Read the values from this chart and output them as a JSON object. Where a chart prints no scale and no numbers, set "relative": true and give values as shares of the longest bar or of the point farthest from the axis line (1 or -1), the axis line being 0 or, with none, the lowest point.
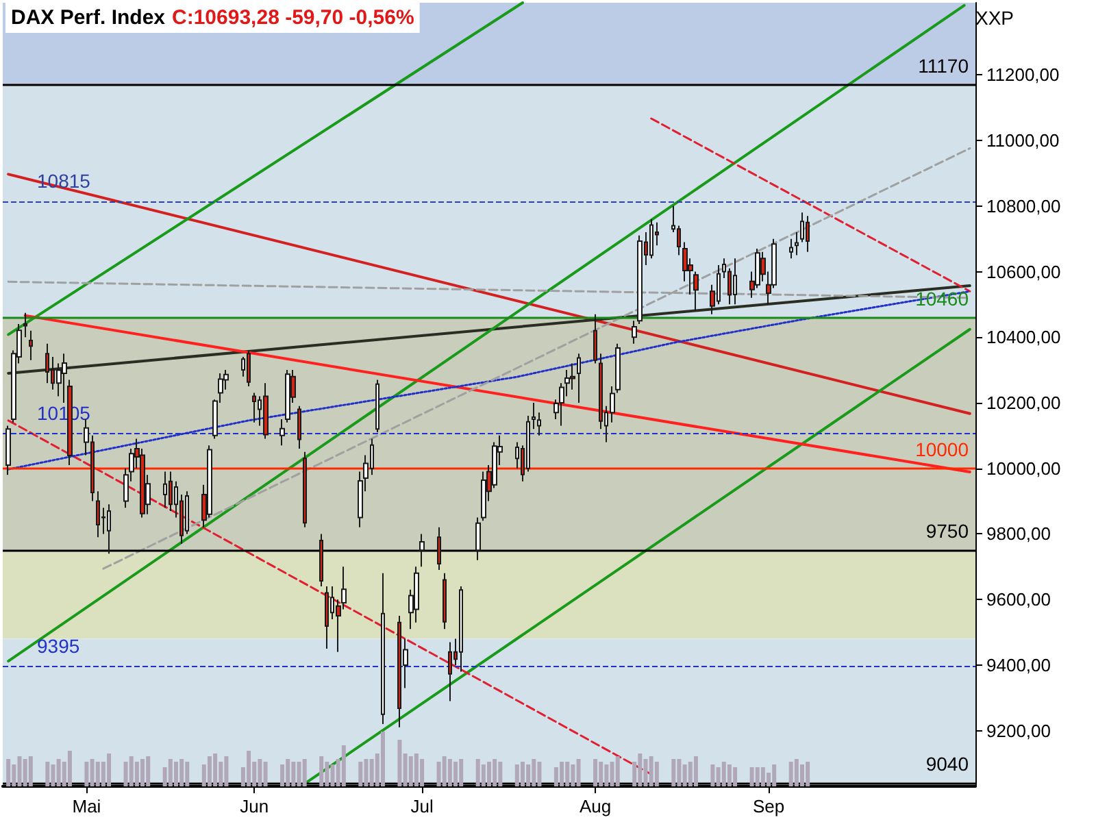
{
  "chart_data": [
    {
      "type": "candlestick",
      "title": "DAX Perf. Index",
      "subtitle": "C:10693,28 -59,70 -0,56%",
      "annotations": [
        "XXP"
      ],
      "x": [
        "--04-18",
        "--04-19",
        "--04-20",
        "--04-21",
        "--04-22",
        "--04-25",
        "--04-26",
        "--04-27",
        "--04-28",
        "--04-29",
        "--05-02",
        "--05-03",
        "--05-04",
        "--05-05",
        "--05-06",
        "--05-09",
        "--05-10",
        "--05-11",
        "--05-12",
        "--05-13",
        "--05-16",
        "--05-17",
        "--05-18",
        "--05-19",
        "--05-20",
        "--05-23",
        "--05-24",
        "--05-25",
        "--05-26",
        "--05-27",
        "--05-30",
        "--05-31",
        "--06-01",
        "--06-02",
        "--06-03",
        "--06-06",
        "--06-07",
        "--06-08",
        "--06-09",
        "--06-10",
        "--06-13",
        "--06-14",
        "--06-15",
        "--06-16",
        "--06-17",
        "--06-20",
        "--06-21",
        "--06-22",
        "--06-23",
        "--06-24",
        "--06-27",
        "--06-28",
        "--06-29",
        "--06-30",
        "--07-01",
        "--07-04",
        "--07-05",
        "--07-06",
        "--07-07",
        "--07-08",
        "--07-11",
        "--07-12",
        "--07-13",
        "--07-14",
        "--07-15",
        "--07-18",
        "--07-19",
        "--07-20",
        "--07-21",
        "--07-22",
        "--07-25",
        "--07-26",
        "--07-27",
        "--07-28",
        "--07-29",
        "--08-01",
        "--08-02",
        "--08-03",
        "--08-04",
        "--08-05",
        "--08-08",
        "--08-09",
        "--08-10",
        "--08-11",
        "--08-12",
        "--08-15",
        "--08-16",
        "--08-17",
        "--08-18",
        "--08-19",
        "--08-22",
        "--08-23",
        "--08-24",
        "--08-25",
        "--08-26",
        "--08-29",
        "--08-30",
        "--08-31",
        "--09-01",
        "--09-02",
        "--09-05",
        "--09-06",
        "--09-07",
        "--09-08"
      ],
      "ohlc": [
        [
          10010,
          10130,
          9980,
          10120
        ],
        [
          10150,
          10360,
          10140,
          10350
        ],
        [
          10340,
          10440,
          10320,
          10421
        ],
        [
          10440,
          10474,
          10400,
          10435
        ],
        [
          10390,
          10420,
          10330,
          10373
        ],
        [
          10350,
          10380,
          10260,
          10294
        ],
        [
          10300,
          10340,
          10240,
          10260
        ],
        [
          10260,
          10320,
          10220,
          10299
        ],
        [
          10290,
          10350,
          10200,
          10321
        ],
        [
          10250,
          10270,
          10010,
          10039
        ],
        [
          10080,
          10150,
          10040,
          10123
        ],
        [
          10080,
          10100,
          9900,
          9926
        ],
        [
          9900,
          9930,
          9790,
          9828
        ],
        [
          9850,
          9880,
          9800,
          9851
        ],
        [
          9810,
          9890,
          9740,
          9870
        ],
        [
          9900,
          10000,
          9880,
          9980
        ],
        [
          9990,
          10060,
          9960,
          10045
        ],
        [
          10060,
          10090,
          10000,
          10035
        ],
        [
          10040,
          10060,
          9850,
          9862
        ],
        [
          9890,
          9980,
          9860,
          9953
        ],
        [
          9920,
          9990,
          9880,
          9952
        ],
        [
          9960,
          9990,
          9870,
          9890
        ],
        [
          9890,
          9960,
          9850,
          9943
        ],
        [
          9900,
          9920,
          9770,
          9795
        ],
        [
          9810,
          9930,
          9800,
          9916
        ],
        [
          9920,
          9950,
          9820,
          9842
        ],
        [
          9860,
          10070,
          9850,
          10057
        ],
        [
          10100,
          10210,
          10090,
          10205
        ],
        [
          10230,
          10290,
          10200,
          10272
        ],
        [
          10270,
          10300,
          10240,
          10286
        ],
        [
          10300,
          10340,
          10280,
          10333
        ],
        [
          10350,
          10360,
          10250,
          10263
        ],
        [
          10220,
          10230,
          10140,
          10204
        ],
        [
          10180,
          10220,
          10130,
          10208
        ],
        [
          10220,
          10260,
          10090,
          10103
        ],
        [
          10100,
          10150,
          10070,
          10121
        ],
        [
          10150,
          10300,
          10140,
          10287
        ],
        [
          10280,
          10300,
          10200,
          10217
        ],
        [
          10180,
          10190,
          10060,
          10088
        ],
        [
          10030,
          10050,
          9820,
          9834
        ],
        [
          9780,
          9800,
          9640,
          9657
        ],
        [
          9620,
          9640,
          9450,
          9519
        ],
        [
          9560,
          9640,
          9540,
          9606
        ],
        [
          9580,
          9600,
          9440,
          9550
        ],
        [
          9590,
          9700,
          9570,
          9631
        ],
        [
          9850,
          9990,
          9820,
          9962
        ],
        [
          9970,
          10040,
          9930,
          10015
        ],
        [
          10000,
          10090,
          9980,
          10071
        ],
        [
          10120,
          10270,
          10110,
          10257
        ],
        [
          9250,
          9680,
          9220,
          9557
        ],
        [
          9530,
          9550,
          9210,
          9268
        ],
        [
          9400,
          9480,
          9330,
          9447
        ],
        [
          9560,
          9630,
          9510,
          9612
        ],
        [
          9570,
          9700,
          9530,
          9680
        ],
        [
          9750,
          9800,
          9700,
          9776
        ],
        [
          9790,
          9820,
          9690,
          9709
        ],
        [
          9660,
          9680,
          9510,
          9532
        ],
        [
          9440,
          9470,
          9290,
          9373
        ],
        [
          9440,
          9480,
          9400,
          9418
        ],
        [
          9440,
          9640,
          9380,
          9629
        ],
        [
          9750,
          9850,
          9720,
          9833
        ],
        [
          9850,
          9990,
          9840,
          9964
        ],
        [
          9990,
          10010,
          9900,
          9930
        ],
        [
          9950,
          10080,
          9940,
          10068
        ],
        [
          10050,
          10100,
          10010,
          10066
        ],
        [
          10030,
          10080,
          10000,
          10064
        ],
        [
          10060,
          10070,
          9960,
          9981
        ],
        [
          10000,
          10160,
          9990,
          10142
        ],
        [
          10150,
          10200,
          10120,
          10156
        ],
        [
          10130,
          10170,
          10100,
          10147
        ],
        [
          10170,
          10210,
          10150,
          10198
        ],
        [
          10200,
          10260,
          10130,
          10247
        ],
        [
          10260,
          10300,
          10220,
          10275
        ],
        [
          10280,
          10320,
          10240,
          10274
        ],
        [
          10290,
          10350,
          10200,
          10337
        ],
        [
          10420,
          10470,
          10320,
          10330
        ],
        [
          10320,
          10350,
          10120,
          10144
        ],
        [
          10130,
          10190,
          10080,
          10170
        ],
        [
          10170,
          10250,
          10140,
          10228
        ],
        [
          10240,
          10380,
          10230,
          10367
        ],
        [
          10400,
          10450,
          10380,
          10432
        ],
        [
          10450,
          10710,
          10440,
          10693
        ],
        [
          10690,
          10720,
          10620,
          10651
        ],
        [
          10650,
          10760,
          10640,
          10742
        ],
        [
          10720,
          10750,
          10680,
          10713
        ],
        [
          10730,
          10800,
          10720,
          10740
        ],
        [
          10730,
          10740,
          10650,
          10676
        ],
        [
          10670,
          10690,
          10570,
          10603
        ],
        [
          10620,
          10640,
          10530,
          10603
        ],
        [
          10590,
          10600,
          10480,
          10544
        ],
        [
          10540,
          10560,
          10470,
          10495
        ],
        [
          10510,
          10620,
          10500,
          10593
        ],
        [
          10600,
          10640,
          10580,
          10622
        ],
        [
          10600,
          10610,
          10500,
          10529
        ],
        [
          10530,
          10640,
          10500,
          10588
        ],
        [
          10570,
          10600,
          10520,
          10545
        ],
        [
          10560,
          10670,
          10550,
          10657
        ],
        [
          10640,
          10660,
          10570,
          10592
        ],
        [
          10560,
          10600,
          10500,
          10534
        ],
        [
          10560,
          10700,
          10550,
          10684
        ],
        [
          10660,
          10700,
          10640,
          10673
        ],
        [
          10680,
          10720,
          10650,
          10688
        ],
        [
          10700,
          10780,
          10690,
          10753
        ],
        [
          10750,
          10770,
          10660,
          10693
        ]
      ],
      "colors": [
        "#ffffff",
        "#ffffff",
        "#ffffff",
        "#d02818",
        "#d02818",
        "#d02818",
        "#d02818",
        "#ffffff",
        "#ffffff",
        "#d02818",
        "#ffffff",
        "#d02818",
        "#d02818",
        "#ffffff",
        "#ffffff",
        "#ffffff",
        "#ffffff",
        "#d02818",
        "#d02818",
        "#ffffff",
        "#ffffff",
        "#d02818",
        "#ffffff",
        "#d02818",
        "#ffffff",
        "#d02818",
        "#ffffff",
        "#ffffff",
        "#ffffff",
        "#ffffff",
        "#ffffff",
        "#d02818",
        "#d02818",
        "#ffffff",
        "#d02818",
        "#ffffff",
        "#ffffff",
        "#d02818",
        "#d02818",
        "#d02818",
        "#d02818",
        "#d02818",
        "#ffffff",
        "#d02818",
        "#ffffff",
        "#ffffff",
        "#ffffff",
        "#ffffff",
        "#ffffff",
        "#ffffff",
        "#d02818",
        "#ffffff",
        "#ffffff",
        "#ffffff",
        "#ffffff",
        "#d02818",
        "#d02818",
        "#d02818",
        "#d02818",
        "#ffffff",
        "#ffffff",
        "#ffffff",
        "#d02818",
        "#ffffff",
        "#ffffff",
        "#ffffff",
        "#d02818",
        "#ffffff",
        "#ffffff",
        "#ffffff",
        "#ffffff",
        "#ffffff",
        "#ffffff",
        "#d02818",
        "#ffffff",
        "#d02818",
        "#d02818",
        "#ffffff",
        "#ffffff",
        "#ffffff",
        "#ffffff",
        "#ffffff",
        "#d02818",
        "#ffffff",
        "#d02818",
        "#ffffff",
        "#d02818",
        "#d02818",
        "#d02818",
        "#d02818",
        "#d02818",
        "#ffffff",
        "#ffffff",
        "#d02818",
        "#ffffff",
        "#d02818",
        "#ffffff",
        "#d02818",
        "#d02818",
        "#ffffff",
        "#ffffff",
        "#ffffff",
        "#ffffff",
        "#d02818"
      ],
      "series": [
        {
          "type": "line",
          "x": [
            "--04-18",
            "--10-07"
          ],
          "values": [
            10897,
            10167
          ],
          "color": "#d42020",
          "line_style": "solid"
        },
        {
          "type": "line",
          "x": [
            "--04-18",
            "--10-07"
          ],
          "values": [
            10290,
            10557
          ],
          "color": "#2a2e22",
          "line_style": "solid"
        },
        {
          "type": "line",
          "x": [
            "--04-18",
            "--07-19"
          ],
          "values": [
            10408,
            11420
          ],
          "color": "#1a9a1a",
          "line_style": "solid"
        },
        {
          "type": "line",
          "x": [
            "--04-18",
            "--10-06"
          ],
          "values": [
            9412,
            11412
          ],
          "color": "#1a9a1a",
          "line_style": "solid"
        },
        {
          "type": "line",
          "x": [
            "--06-10",
            "--10-07"
          ],
          "values": [
            9038,
            10424
          ],
          "color": "#1a9a1a",
          "line_style": "solid"
        },
        {
          "type": "line",
          "x": [
            "--04-21",
            "--10-07"
          ],
          "values": [
            10466,
            9989
          ],
          "color": "#ff2020",
          "line_style": "solid"
        },
        {
          "type": "line",
          "x": [
            "--04-18",
            "--08-11"
          ],
          "values": [
            10146,
            9067
          ],
          "color": "#e02030",
          "line_style": "dashed"
        },
        {
          "type": "line",
          "x": [
            "--08-11",
            "--10-07"
          ],
          "values": [
            11067,
            10540
          ],
          "color": "#e02030",
          "line_style": "dashed"
        },
        {
          "type": "line",
          "x": [
            "--04-18",
            "--05-31",
            "--07-18",
            "--08-15",
            "--09-08",
            "--10-07"
          ],
          "values": [
            9997,
            10146,
            10279,
            10383,
            10457,
            10540
          ],
          "color": "#2030c8",
          "line_style": "dotted"
        },
        {
          "type": "line",
          "x": [
            "--04-18",
            "--10-07"
          ],
          "values": [
            10569,
            10520
          ],
          "color": "#a0a0a0",
          "line_style": "dashed"
        },
        {
          "type": "line",
          "x": [
            "--05-05",
            "--10-07"
          ],
          "values": [
            9694,
            10976
          ],
          "color": "#a0a0a0",
          "line_style": "dashed"
        }
      ],
      "xlim": [
        "--04-17",
        "--10-08"
      ],
      "xticks": [
        {
          "value": "--05-02",
          "label": "Mai"
        },
        {
          "value": "--06-01",
          "label": "Jun"
        },
        {
          "value": "--07-01",
          "label": "Jul"
        },
        {
          "value": "--08-01",
          "label": "Aug"
        },
        {
          "value": "--09-01",
          "label": "Sep"
        }
      ],
      "ylim": [
        9030,
        11420
      ],
      "yticks": [
        {
          "value": 9200,
          "label": "9200,00"
        },
        {
          "value": 9400,
          "label": "9400,00"
        },
        {
          "value": 9600,
          "label": "9600,00"
        },
        {
          "value": 9800,
          "label": "9800,00"
        },
        {
          "value": 10000,
          "label": "10000,00"
        },
        {
          "value": 10200,
          "label": "10200,00"
        },
        {
          "value": 10400,
          "label": "10400,00"
        },
        {
          "value": 10600,
          "label": "10600,00"
        },
        {
          "value": 10800,
          "label": "10800,00"
        },
        {
          "value": 11000,
          "label": "11000,00"
        },
        {
          "value": 11200,
          "label": "11200,00"
        }
      ],
      "ref_lines": [
        {
          "axis": "y",
          "value": 11170,
          "label": "11170",
          "color": "#000000",
          "line_style": "solid"
        },
        {
          "axis": "y",
          "value": 10815,
          "label": "10815",
          "color": "#3040a0",
          "line_style": "dashed"
        },
        {
          "axis": "y",
          "value": 10460,
          "label": "10460",
          "color": "#1a8a1a",
          "line_style": "solid"
        },
        {
          "axis": "y",
          "value": 10105,
          "label": "10105",
          "color": "#2030c8",
          "line_style": "dashed"
        },
        {
          "axis": "y",
          "value": 10000,
          "label": "10000",
          "color": "#ff2800",
          "line_style": "solid"
        },
        {
          "axis": "y",
          "value": 9750,
          "label": "9750",
          "color": "#000000",
          "line_style": "solid"
        },
        {
          "axis": "y",
          "value": 9395,
          "label": "9395",
          "color": "#2030c8",
          "line_style": "dashed"
        },
        {
          "axis": "y",
          "value": 9040,
          "label": "9040",
          "color": "#000000",
          "line_style": "solid"
        }
      ],
      "bands": [
        {
          "axis": "y",
          "from": 11170,
          "to": 11420,
          "color": "#bccbe6"
        },
        {
          "axis": "y",
          "from": 10460,
          "to": 11170,
          "color": "#d3e2ea"
        },
        {
          "axis": "y",
          "from": 9750,
          "to": 10460,
          "color": "#c9cdbc"
        },
        {
          "axis": "y",
          "from": 9480,
          "to": 9750,
          "color": "#dbe0bf"
        },
        {
          "axis": "y",
          "from": 9030,
          "to": 9480,
          "color": "#d3e2ea"
        }
      ]
    },
    {
      "type": "bar",
      "relative": true,
      "color": "#b0a8b8",
      "x": [
        "--04-18",
        "--04-19",
        "--04-20",
        "--04-21",
        "--04-22",
        "--04-25",
        "--04-26",
        "--04-27",
        "--04-28",
        "--04-29",
        "--05-02",
        "--05-03",
        "--05-04",
        "--05-05",
        "--05-06",
        "--05-09",
        "--05-10",
        "--05-11",
        "--05-12",
        "--05-13",
        "--05-16",
        "--05-17",
        "--05-18",
        "--05-19",
        "--05-20",
        "--05-23",
        "--05-24",
        "--05-25",
        "--05-26",
        "--05-27",
        "--05-30",
        "--05-31",
        "--06-01",
        "--06-02",
        "--06-03",
        "--06-06",
        "--06-07",
        "--06-08",
        "--06-09",
        "--06-10",
        "--06-13",
        "--06-14",
        "--06-15",
        "--06-16",
        "--06-17",
        "--06-20",
        "--06-21",
        "--06-22",
        "--06-23",
        "--06-24",
        "--06-27",
        "--06-28",
        "--06-29",
        "--06-30",
        "--07-01",
        "--07-04",
        "--07-05",
        "--07-06",
        "--07-07",
        "--07-08",
        "--07-11",
        "--07-12",
        "--07-13",
        "--07-14",
        "--07-15",
        "--07-18",
        "--07-19",
        "--07-20",
        "--07-21",
        "--07-22",
        "--07-25",
        "--07-26",
        "--07-27",
        "--07-28",
        "--07-29",
        "--08-01",
        "--08-02",
        "--08-03",
        "--08-04",
        "--08-05",
        "--08-08",
        "--08-09",
        "--08-10",
        "--08-11",
        "--08-12",
        "--08-15",
        "--08-16",
        "--08-17",
        "--08-18",
        "--08-19",
        "--08-22",
        "--08-23",
        "--08-24",
        "--08-25",
        "--08-26",
        "--08-29",
        "--08-30",
        "--08-31",
        "--09-01",
        "--09-02",
        "--09-05",
        "--09-06",
        "--09-07",
        "--09-08"
      ],
      "xlim": [
        "--04-17",
        "--10-08"
      ],
      "values": [
        0.5,
        0.4,
        0.55,
        0.5,
        0.55,
        0.45,
        0.4,
        0.5,
        0.45,
        0.65,
        0.45,
        0.5,
        0.45,
        0.45,
        0.6,
        0.45,
        0.55,
        0.45,
        0.5,
        0.55,
        0.35,
        0.5,
        0.45,
        0.5,
        0.45,
        0.4,
        0.55,
        0.6,
        0.45,
        0.55,
        0.35,
        0.65,
        0.45,
        0.5,
        0.45,
        0.4,
        0.5,
        0.45,
        0.45,
        0.5,
        0.55,
        0.45,
        0.4,
        0.5,
        0.75,
        0.45,
        0.5,
        0.5,
        0.6,
        1,
        0.85,
        0.6,
        0.55,
        0.6,
        0.5,
        0.45,
        0.55,
        0.5,
        0.45,
        0.5,
        0.5,
        0.4,
        0.45,
        0.5,
        0.45,
        0.4,
        0.45,
        0.4,
        0.5,
        0.45,
        0.35,
        0.45,
        0.45,
        0.4,
        0.5,
        0.5,
        0.45,
        0.4,
        0.45,
        0.55,
        0.45,
        0.6,
        0.5,
        0.55,
        0.45,
        0.5,
        0.5,
        0.4,
        0.45,
        0.55,
        0.4,
        0.35,
        0.45,
        0.4,
        0.35,
        0.35,
        0.35,
        0.35,
        0.25,
        0.4,
        0.45,
        0.5,
        0.4,
        0.45
      ]
    }
  ]
}
